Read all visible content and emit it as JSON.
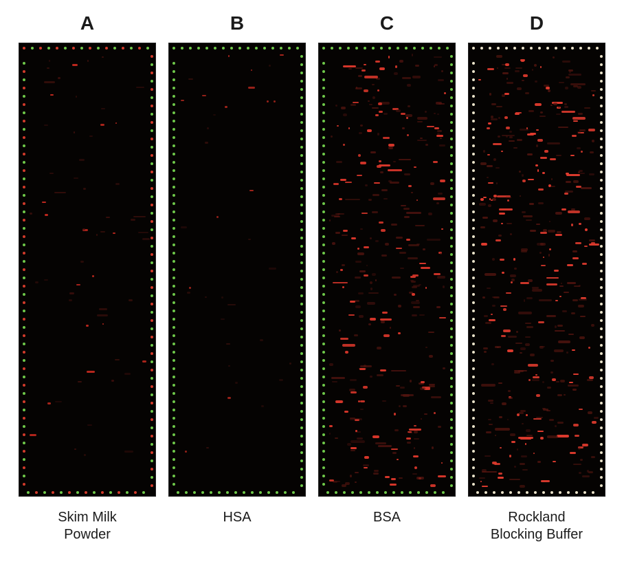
{
  "figure": {
    "panels": [
      {
        "letter": "A",
        "caption": "Skim Milk\nPowder",
        "border_dot_colors": [
          "#d23a2a",
          "#6fc94a"
        ],
        "border_dot_size": 4,
        "border_dot_gap": 8,
        "speckle_density": 60,
        "speckle_color_strong": "#c0281e",
        "speckle_color_dim": "#4a120e",
        "speckle_min_w": 2,
        "speckle_max_w": 8,
        "speckle_min_h": 2,
        "speckle_max_h": 3,
        "seed": 11
      },
      {
        "letter": "B",
        "caption": "HSA",
        "border_dot_colors": [
          "#6fc94a",
          "#6fc94a"
        ],
        "border_dot_size": 4,
        "border_dot_gap": 8,
        "speckle_density": 35,
        "speckle_color_strong": "#a9251c",
        "speckle_color_dim": "#3e110d",
        "speckle_min_w": 2,
        "speckle_max_w": 7,
        "speckle_min_h": 2,
        "speckle_max_h": 3,
        "seed": 22
      },
      {
        "letter": "C",
        "caption": "BSA",
        "border_dot_colors": [
          "#6fc94a",
          "#6fc94a"
        ],
        "border_dot_size": 4,
        "border_dot_gap": 8,
        "speckle_density": 320,
        "speckle_color_strong": "#d8362a",
        "speckle_color_dim": "#5a1611",
        "speckle_min_w": 2,
        "speckle_max_w": 10,
        "speckle_min_h": 2,
        "speckle_max_h": 4,
        "seed": 33
      },
      {
        "letter": "D",
        "caption": "Rockland\nBlocking Buffer",
        "border_dot_colors": [
          "#e9e2c9",
          "#e9e2c9"
        ],
        "border_dot_size": 4,
        "border_dot_gap": 8,
        "speckle_density": 380,
        "speckle_color_strong": "#e03b2e",
        "speckle_color_dim": "#5f1812",
        "speckle_min_w": 2,
        "speckle_max_w": 10,
        "speckle_min_h": 2,
        "speckle_max_h": 4,
        "seed": 44
      }
    ],
    "array_box_w": 200,
    "array_box_h": 660,
    "bg_color": "#050302",
    "panel_title_fontsize": 28,
    "caption_fontsize": 20,
    "title_color": "#1b1b1b",
    "caption_color": "#1b1b1b"
  }
}
